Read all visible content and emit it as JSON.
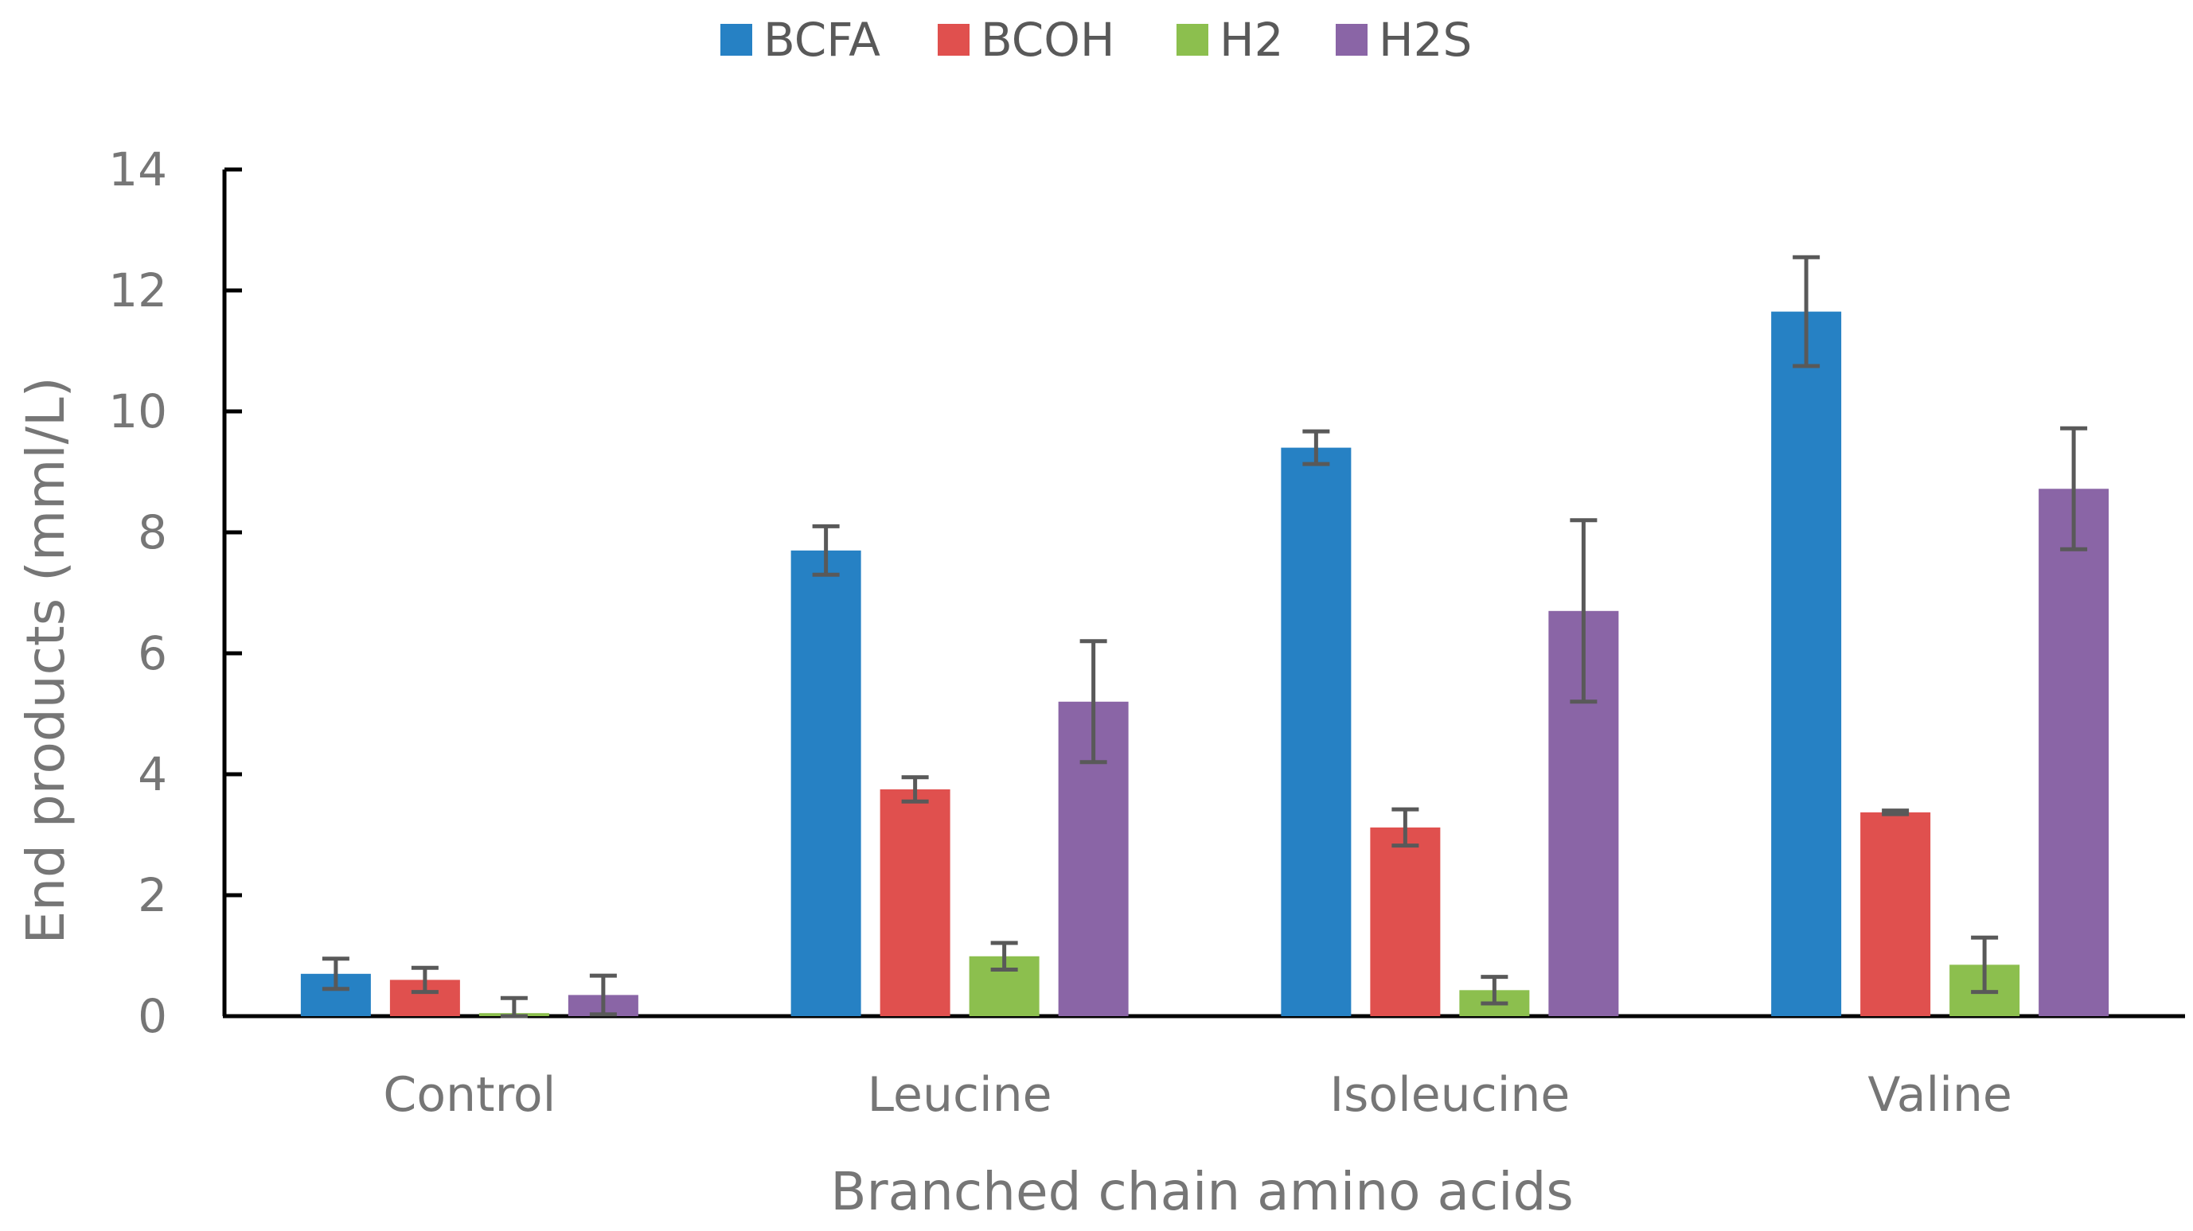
{
  "chart_data": {
    "type": "bar",
    "title": "",
    "xlabel": "Branched chain amino acids",
    "ylabel": "End products (mml/L)",
    "ylim": [
      0,
      14
    ],
    "yticks": [
      0,
      2,
      4,
      6,
      8,
      10,
      12,
      14
    ],
    "categories": [
      "Control",
      "Leucine",
      "Isoleucine",
      "Valine"
    ],
    "legend_position": "top-center",
    "series": [
      {
        "name": "BCFA",
        "color": "#2681C4",
        "values": [
          0.7,
          7.7,
          9.4,
          11.65
        ],
        "errors": [
          0.25,
          0.4,
          0.27,
          0.9
        ]
      },
      {
        "name": "BCOH",
        "color": "#E0504E",
        "values": [
          0.6,
          3.75,
          3.12,
          3.37
        ],
        "errors": [
          0.2,
          0.2,
          0.3,
          0.03
        ]
      },
      {
        "name": "H2",
        "color": "#8CBF4E",
        "values": [
          0.05,
          0.99,
          0.43,
          0.85
        ],
        "errors": [
          0.25,
          0.22,
          0.22,
          0.45
        ]
      },
      {
        "name": "H2S",
        "color": "#8A65A6",
        "values": [
          0.35,
          5.2,
          6.7,
          8.72
        ],
        "errors": [
          0.32,
          1.0,
          1.5,
          1.0
        ]
      }
    ]
  }
}
